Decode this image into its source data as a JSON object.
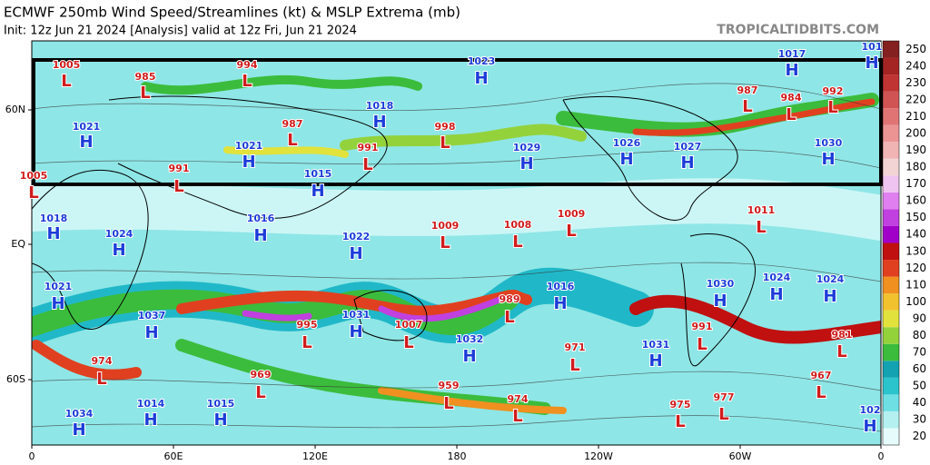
{
  "header": {
    "title": "ECMWF 250mb Wind Speed/Streamlines (kt) & MSLP Extrema (mb)",
    "subtitle": "Init: 12z Jun 21 2024   [Analysis]   valid at 12z Fri, Jun 21 2024",
    "source": "TROPICALTIDBITS.COM"
  },
  "map": {
    "lon_labels": [
      "0",
      "60E",
      "120E",
      "180",
      "120W",
      "60W",
      "0"
    ],
    "lat_labels": [
      "60N",
      "EQ",
      "60S"
    ],
    "centers": [
      {
        "letter": "L",
        "value": 1005
      },
      {
        "letter": "L",
        "value": 985
      },
      {
        "letter": "L",
        "value": 994
      },
      {
        "letter": "H",
        "value": 1023
      },
      {
        "letter": "H",
        "value": 1017
      },
      {
        "letter": "H",
        "value": 101
      },
      {
        "letter": "H",
        "value": 1021
      },
      {
        "letter": "L",
        "value": 987
      },
      {
        "letter": "H",
        "value": 1018
      },
      {
        "letter": "L",
        "value": 998
      },
      {
        "letter": "L",
        "value": 987
      },
      {
        "letter": "L",
        "value": 984
      },
      {
        "letter": "L",
        "value": 992
      },
      {
        "letter": "H",
        "value": 1021
      },
      {
        "letter": "L",
        "value": 991
      },
      {
        "letter": "H",
        "value": 1029
      },
      {
        "letter": "H",
        "value": 1026
      },
      {
        "letter": "H",
        "value": 1027
      },
      {
        "letter": "H",
        "value": 1030
      },
      {
        "letter": "L",
        "value": 1005
      },
      {
        "letter": "L",
        "value": 991
      },
      {
        "letter": "H",
        "value": 1015
      },
      {
        "letter": "H",
        "value": 1018
      },
      {
        "letter": "H",
        "value": 1016
      },
      {
        "letter": "H",
        "value": 1024
      },
      {
        "letter": "H",
        "value": 1022
      },
      {
        "letter": "L",
        "value": 1009
      },
      {
        "letter": "L",
        "value": 1008
      },
      {
        "letter": "L",
        "value": 1009
      },
      {
        "letter": "L",
        "value": 1011
      },
      {
        "letter": "H",
        "value": 1021
      },
      {
        "letter": "H",
        "value": 1037
      },
      {
        "letter": "H",
        "value": 1030
      },
      {
        "letter": "H",
        "value": 1024
      },
      {
        "letter": "H",
        "value": 1024
      },
      {
        "letter": "H",
        "value": 1016
      },
      {
        "letter": "L",
        "value": 989
      },
      {
        "letter": "L",
        "value": 995
      },
      {
        "letter": "H",
        "value": 1031
      },
      {
        "letter": "L",
        "value": 1007
      },
      {
        "letter": "H",
        "value": 1032
      },
      {
        "letter": "L",
        "value": 971
      },
      {
        "letter": "H",
        "value": 1031
      },
      {
        "letter": "L",
        "value": 991
      },
      {
        "letter": "L",
        "value": 981
      },
      {
        "letter": "L",
        "value": 974
      },
      {
        "letter": "L",
        "value": 969
      },
      {
        "letter": "L",
        "value": 967
      },
      {
        "letter": "L",
        "value": 959
      },
      {
        "letter": "L",
        "value": 974
      },
      {
        "letter": "L",
        "value": 975
      },
      {
        "letter": "L",
        "value": 977
      },
      {
        "letter": "H",
        "value": 1014
      },
      {
        "letter": "H",
        "value": 1015
      },
      {
        "letter": "H",
        "value": 1034
      },
      {
        "letter": "H",
        "value": 102
      }
    ]
  },
  "colorbar": {
    "ticks": [
      20,
      30,
      40,
      50,
      60,
      70,
      80,
      90,
      100,
      110,
      120,
      130,
      140,
      150,
      160,
      170,
      180,
      190,
      200,
      210,
      220,
      230,
      240,
      250
    ],
    "colors": [
      "#e6fcfc",
      "#b4f0f0",
      "#6ee0e4",
      "#2cc4cc",
      "#12a2b2",
      "#3cbc3c",
      "#94d23c",
      "#e2e23c",
      "#f2c22e",
      "#f09020",
      "#e04020",
      "#c01010",
      "#a000c8",
      "#c040e0",
      "#e080f0",
      "#f0c4f0",
      "#f2d4d4",
      "#f0b4b4",
      "#ec9494",
      "#e07474",
      "#d05454",
      "#c03434",
      "#a42424",
      "#842020"
    ]
  }
}
